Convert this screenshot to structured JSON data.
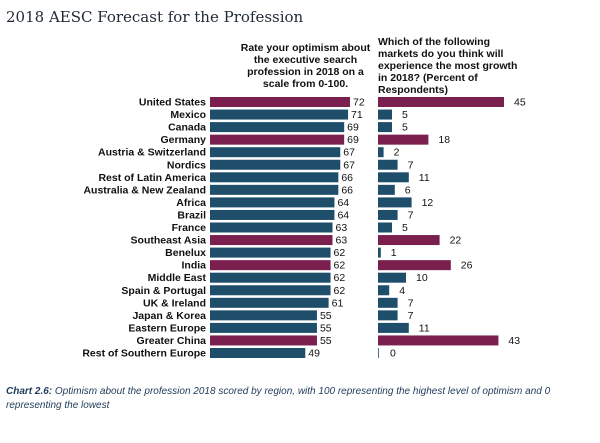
{
  "title": "2018 AESC Forecast for the Profession",
  "caption_label": "Chart 2.6:",
  "caption_text": "Optimism about the profession 2018 scored by region, with 100 representing the highest level of optimism and 0 representing the lowest",
  "colors": {
    "highlight": "#7b1f4e",
    "normal": "#1f4e6b"
  },
  "chart_data": [
    {
      "type": "bar",
      "orientation": "horizontal",
      "title": "Rate your optimism about the executive search profession in 2018 on a scale from 0-100.",
      "categories": [
        "United States",
        "Mexico",
        "Canada",
        "Germany",
        "Austria & Switzerland",
        "Nordics",
        "Rest of Latin America",
        "Australia & New Zealand",
        "Africa",
        "Brazil",
        "France",
        "Southeast Asia",
        "Benelux",
        "India",
        "Middle East",
        "Spain & Portugal",
        "UK & Ireland",
        "Japan & Korea",
        "Eastern Europe",
        "Greater China",
        "Rest of Southern Europe"
      ],
      "values": [
        72,
        71,
        69,
        69,
        67,
        67,
        66,
        66,
        64,
        64,
        63,
        63,
        62,
        62,
        62,
        62,
        61,
        55,
        55,
        55,
        49
      ],
      "highlighted": [
        "United States",
        "Germany",
        "Southeast Asia",
        "India",
        "Greater China"
      ],
      "xlim": [
        0,
        80
      ]
    },
    {
      "type": "bar",
      "orientation": "horizontal",
      "title": "Which of the following markets do you think will experience the most growth in 2018? (Percent of Respondents)",
      "categories": [
        "United States",
        "Mexico",
        "Canada",
        "Germany",
        "Austria & Switzerland",
        "Nordics",
        "Rest of Latin America",
        "Australia & New Zealand",
        "Africa",
        "Brazil",
        "France",
        "Southeast Asia",
        "Benelux",
        "India",
        "Middle East",
        "Spain & Portugal",
        "UK & Ireland",
        "Japan & Korea",
        "Eastern Europe",
        "Greater China",
        "Rest of Southern Europe"
      ],
      "values": [
        45,
        5,
        5,
        18,
        2,
        7,
        11,
        6,
        12,
        7,
        5,
        22,
        1,
        26,
        10,
        4,
        7,
        7,
        11,
        43,
        0
      ],
      "highlighted": [
        "United States",
        "Germany",
        "Southeast Asia",
        "India",
        "Greater China"
      ],
      "xlim": [
        0,
        50
      ]
    }
  ]
}
